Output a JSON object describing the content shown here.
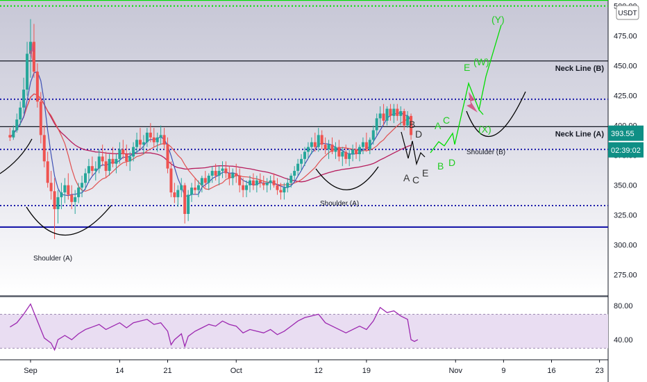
{
  "chart_data": {
    "type": "candlestick",
    "currency_badge": "USDT",
    "price_axis": {
      "ylim": [
        258,
        505
      ],
      "ticks": [
        "500.00",
        "475.00",
        "450.00",
        "425.00",
        "400.00",
        "375.00",
        "350.00",
        "325.00",
        "300.00",
        "275.00"
      ],
      "tick_values": [
        500,
        475,
        450,
        425,
        400,
        375,
        350,
        325,
        300,
        275
      ]
    },
    "rsi_axis": {
      "ylim": [
        18,
        90
      ],
      "ticks": [
        "80.00",
        "40.00"
      ],
      "tick_values": [
        80,
        40
      ],
      "band_upper": 70,
      "band_lower": 30
    },
    "x_axis": {
      "labels": [
        "Sep",
        "14",
        "21",
        "Oct",
        "12",
        "19",
        "Nov",
        "9",
        "16",
        "23"
      ],
      "day_index": [
        0,
        13,
        20,
        30,
        42,
        49,
        62,
        69,
        76,
        83
      ]
    },
    "current_price": "393.55",
    "countdown": "02:39:02",
    "horizontal_levels": [
      {
        "value": 505,
        "color": "#00e000",
        "style": "solid"
      },
      {
        "value": 500,
        "color": "#00e000",
        "style": "dotted"
      },
      {
        "value": 454,
        "color": "#131722",
        "style": "solid",
        "label": "Neck Line (B)"
      },
      {
        "value": 422,
        "color": "#1a1aaa",
        "style": "dotted"
      },
      {
        "value": 399,
        "color": "#131722",
        "style": "solid",
        "label": "Neck Line (A)"
      },
      {
        "value": 380,
        "color": "#1a1aaa",
        "style": "dotted"
      },
      {
        "value": 333,
        "color": "#1a1aaa",
        "style": "dotted"
      },
      {
        "value": 315,
        "color": "#1a1aaa",
        "style": "solid"
      }
    ],
    "annotations": {
      "shoulder_a_left": "Shoulder (A)",
      "shoulder_a_right": "Shoulder (A)",
      "shoulder_b": "Shoulder (B)",
      "wave_black": [
        "B",
        "D",
        "A",
        "C",
        "E"
      ],
      "wave_green": [
        "A",
        "C",
        "B",
        "D",
        "E",
        "(W)",
        "(X)",
        "(Y)"
      ]
    },
    "candles": [
      {
        "day": -3.0,
        "o": 392,
        "h": 398,
        "l": 387,
        "c": 390
      },
      {
        "day": -2.5,
        "o": 390,
        "h": 400,
        "l": 388,
        "c": 396
      },
      {
        "day": -2.0,
        "o": 396,
        "h": 410,
        "l": 394,
        "c": 405
      },
      {
        "day": -1.5,
        "o": 405,
        "h": 420,
        "l": 400,
        "c": 415
      },
      {
        "day": -1.0,
        "o": 415,
        "h": 440,
        "l": 410,
        "c": 430
      },
      {
        "day": -0.5,
        "o": 430,
        "h": 470,
        "l": 425,
        "c": 460
      },
      {
        "day": 0.0,
        "o": 460,
        "h": 489,
        "l": 440,
        "c": 470
      },
      {
        "day": 0.5,
        "o": 470,
        "h": 485,
        "l": 440,
        "c": 445
      },
      {
        "day": 1.0,
        "o": 445,
        "h": 452,
        "l": 415,
        "c": 420
      },
      {
        "day": 1.5,
        "o": 420,
        "h": 428,
        "l": 385,
        "c": 392
      },
      {
        "day": 2.0,
        "o": 392,
        "h": 400,
        "l": 365,
        "c": 370
      },
      {
        "day": 2.5,
        "o": 370,
        "h": 378,
        "l": 348,
        "c": 352
      },
      {
        "day": 3.0,
        "o": 352,
        "h": 362,
        "l": 338,
        "c": 345
      },
      {
        "day": 3.5,
        "o": 345,
        "h": 356,
        "l": 305,
        "c": 330
      },
      {
        "day": 4.0,
        "o": 330,
        "h": 346,
        "l": 318,
        "c": 340
      },
      {
        "day": 4.5,
        "o": 340,
        "h": 352,
        "l": 330,
        "c": 344
      },
      {
        "day": 5.0,
        "o": 344,
        "h": 356,
        "l": 335,
        "c": 350
      },
      {
        "day": 5.5,
        "o": 350,
        "h": 360,
        "l": 338,
        "c": 342
      },
      {
        "day": 6.0,
        "o": 342,
        "h": 350,
        "l": 330,
        "c": 336
      },
      {
        "day": 6.5,
        "o": 336,
        "h": 346,
        "l": 326,
        "c": 340
      },
      {
        "day": 7.0,
        "o": 340,
        "h": 352,
        "l": 335,
        "c": 348
      },
      {
        "day": 7.5,
        "o": 348,
        "h": 358,
        "l": 340,
        "c": 352
      },
      {
        "day": 8.0,
        "o": 352,
        "h": 364,
        "l": 346,
        "c": 360
      },
      {
        "day": 8.5,
        "o": 360,
        "h": 372,
        "l": 352,
        "c": 366
      },
      {
        "day": 9.0,
        "o": 366,
        "h": 374,
        "l": 358,
        "c": 362
      },
      {
        "day": 9.5,
        "o": 362,
        "h": 370,
        "l": 354,
        "c": 364
      },
      {
        "day": 10.0,
        "o": 364,
        "h": 380,
        "l": 360,
        "c": 374
      },
      {
        "day": 10.5,
        "o": 374,
        "h": 384,
        "l": 366,
        "c": 370
      },
      {
        "day": 11.0,
        "o": 370,
        "h": 378,
        "l": 356,
        "c": 362
      },
      {
        "day": 11.5,
        "o": 362,
        "h": 376,
        "l": 358,
        "c": 372
      },
      {
        "day": 12.0,
        "o": 372,
        "h": 382,
        "l": 365,
        "c": 368
      },
      {
        "day": 12.5,
        "o": 368,
        "h": 376,
        "l": 360,
        "c": 372
      },
      {
        "day": 13.0,
        "o": 372,
        "h": 386,
        "l": 368,
        "c": 380
      },
      {
        "day": 13.5,
        "o": 380,
        "h": 388,
        "l": 372,
        "c": 376
      },
      {
        "day": 14.0,
        "o": 376,
        "h": 384,
        "l": 366,
        "c": 370
      },
      {
        "day": 14.5,
        "o": 370,
        "h": 378,
        "l": 362,
        "c": 374
      },
      {
        "day": 15.0,
        "o": 374,
        "h": 386,
        "l": 370,
        "c": 382
      },
      {
        "day": 15.5,
        "o": 382,
        "h": 394,
        "l": 376,
        "c": 388
      },
      {
        "day": 16.0,
        "o": 388,
        "h": 398,
        "l": 380,
        "c": 384
      },
      {
        "day": 16.5,
        "o": 384,
        "h": 392,
        "l": 376,
        "c": 386
      },
      {
        "day": 17.0,
        "o": 386,
        "h": 398,
        "l": 382,
        "c": 394
      },
      {
        "day": 17.5,
        "o": 394,
        "h": 402,
        "l": 386,
        "c": 390
      },
      {
        "day": 18.0,
        "o": 390,
        "h": 398,
        "l": 382,
        "c": 386
      },
      {
        "day": 18.5,
        "o": 386,
        "h": 394,
        "l": 378,
        "c": 390
      },
      {
        "day": 19.0,
        "o": 390,
        "h": 400,
        "l": 384,
        "c": 392
      },
      {
        "day": 19.5,
        "o": 392,
        "h": 398,
        "l": 380,
        "c": 384
      },
      {
        "day": 20.0,
        "o": 384,
        "h": 390,
        "l": 360,
        "c": 364
      },
      {
        "day": 20.5,
        "o": 364,
        "h": 370,
        "l": 340,
        "c": 344
      },
      {
        "day": 21.0,
        "o": 344,
        "h": 352,
        "l": 335,
        "c": 340
      },
      {
        "day": 21.5,
        "o": 340,
        "h": 350,
        "l": 332,
        "c": 346
      },
      {
        "day": 22.0,
        "o": 346,
        "h": 356,
        "l": 340,
        "c": 350
      },
      {
        "day": 22.5,
        "o": 350,
        "h": 352,
        "l": 318,
        "c": 326
      },
      {
        "day": 23.0,
        "o": 326,
        "h": 346,
        "l": 320,
        "c": 342
      },
      {
        "day": 23.5,
        "o": 342,
        "h": 352,
        "l": 336,
        "c": 348
      },
      {
        "day": 24.0,
        "o": 348,
        "h": 356,
        "l": 342,
        "c": 346
      },
      {
        "day": 24.5,
        "o": 346,
        "h": 354,
        "l": 340,
        "c": 350
      },
      {
        "day": 25.0,
        "o": 350,
        "h": 358,
        "l": 344,
        "c": 356
      },
      {
        "day": 25.5,
        "o": 356,
        "h": 362,
        "l": 348,
        "c": 352
      },
      {
        "day": 26.0,
        "o": 352,
        "h": 360,
        "l": 346,
        "c": 358
      },
      {
        "day": 26.5,
        "o": 358,
        "h": 366,
        "l": 352,
        "c": 362
      },
      {
        "day": 27.0,
        "o": 362,
        "h": 368,
        "l": 354,
        "c": 358
      },
      {
        "day": 27.5,
        "o": 358,
        "h": 366,
        "l": 350,
        "c": 362
      },
      {
        "day": 28.0,
        "o": 362,
        "h": 370,
        "l": 356,
        "c": 364
      },
      {
        "day": 28.5,
        "o": 364,
        "h": 370,
        "l": 356,
        "c": 360
      },
      {
        "day": 29.0,
        "o": 360,
        "h": 366,
        "l": 350,
        "c": 356
      },
      {
        "day": 29.5,
        "o": 356,
        "h": 364,
        "l": 350,
        "c": 360
      },
      {
        "day": 30.0,
        "o": 360,
        "h": 368,
        "l": 352,
        "c": 358
      },
      {
        "day": 30.5,
        "o": 358,
        "h": 364,
        "l": 344,
        "c": 350
      },
      {
        "day": 31.0,
        "o": 350,
        "h": 356,
        "l": 340,
        "c": 346
      },
      {
        "day": 31.5,
        "o": 346,
        "h": 354,
        "l": 340,
        "c": 350
      },
      {
        "day": 32.0,
        "o": 350,
        "h": 358,
        "l": 344,
        "c": 354
      },
      {
        "day": 32.5,
        "o": 354,
        "h": 360,
        "l": 346,
        "c": 350
      },
      {
        "day": 33.0,
        "o": 350,
        "h": 358,
        "l": 344,
        "c": 354
      },
      {
        "day": 33.5,
        "o": 354,
        "h": 360,
        "l": 348,
        "c": 352
      },
      {
        "day": 34.0,
        "o": 352,
        "h": 358,
        "l": 346,
        "c": 350
      },
      {
        "day": 34.5,
        "o": 350,
        "h": 356,
        "l": 344,
        "c": 352
      },
      {
        "day": 35.0,
        "o": 352,
        "h": 358,
        "l": 346,
        "c": 354
      },
      {
        "day": 35.5,
        "o": 354,
        "h": 360,
        "l": 348,
        "c": 350
      },
      {
        "day": 36.0,
        "o": 350,
        "h": 356,
        "l": 342,
        "c": 346
      },
      {
        "day": 36.5,
        "o": 346,
        "h": 352,
        "l": 338,
        "c": 344
      },
      {
        "day": 37.0,
        "o": 344,
        "h": 352,
        "l": 338,
        "c": 348
      },
      {
        "day": 37.5,
        "o": 348,
        "h": 356,
        "l": 344,
        "c": 352
      },
      {
        "day": 38.0,
        "o": 352,
        "h": 360,
        "l": 348,
        "c": 358
      },
      {
        "day": 38.5,
        "o": 358,
        "h": 366,
        "l": 354,
        "c": 362
      },
      {
        "day": 39.0,
        "o": 362,
        "h": 372,
        "l": 358,
        "c": 368
      },
      {
        "day": 39.5,
        "o": 368,
        "h": 376,
        "l": 362,
        "c": 372
      },
      {
        "day": 40.0,
        "o": 372,
        "h": 382,
        "l": 366,
        "c": 378
      },
      {
        "day": 40.5,
        "o": 378,
        "h": 386,
        "l": 372,
        "c": 382
      },
      {
        "day": 41.0,
        "o": 382,
        "h": 390,
        "l": 376,
        "c": 386
      },
      {
        "day": 41.5,
        "o": 386,
        "h": 394,
        "l": 378,
        "c": 382
      },
      {
        "day": 42.0,
        "o": 382,
        "h": 398,
        "l": 378,
        "c": 392
      },
      {
        "day": 42.5,
        "o": 392,
        "h": 396,
        "l": 380,
        "c": 384
      },
      {
        "day": 43.0,
        "o": 384,
        "h": 390,
        "l": 376,
        "c": 380
      },
      {
        "day": 43.5,
        "o": 380,
        "h": 388,
        "l": 372,
        "c": 384
      },
      {
        "day": 44.0,
        "o": 384,
        "h": 390,
        "l": 376,
        "c": 378
      },
      {
        "day": 44.5,
        "o": 378,
        "h": 386,
        "l": 372,
        "c": 382
      },
      {
        "day": 45.0,
        "o": 382,
        "h": 388,
        "l": 370,
        "c": 374
      },
      {
        "day": 45.5,
        "o": 374,
        "h": 382,
        "l": 366,
        "c": 378
      },
      {
        "day": 46.0,
        "o": 378,
        "h": 384,
        "l": 368,
        "c": 372
      },
      {
        "day": 46.5,
        "o": 372,
        "h": 380,
        "l": 366,
        "c": 376
      },
      {
        "day": 47.0,
        "o": 376,
        "h": 384,
        "l": 370,
        "c": 380
      },
      {
        "day": 47.5,
        "o": 380,
        "h": 386,
        "l": 372,
        "c": 376
      },
      {
        "day": 48.0,
        "o": 376,
        "h": 384,
        "l": 370,
        "c": 382
      },
      {
        "day": 48.5,
        "o": 382,
        "h": 390,
        "l": 376,
        "c": 386
      },
      {
        "day": 49.0,
        "o": 386,
        "h": 394,
        "l": 378,
        "c": 380
      },
      {
        "day": 49.5,
        "o": 380,
        "h": 390,
        "l": 376,
        "c": 388
      },
      {
        "day": 50.0,
        "o": 388,
        "h": 400,
        "l": 384,
        "c": 396
      },
      {
        "day": 50.5,
        "o": 396,
        "h": 410,
        "l": 392,
        "c": 406
      },
      {
        "day": 51.0,
        "o": 406,
        "h": 416,
        "l": 400,
        "c": 410
      },
      {
        "day": 51.5,
        "o": 410,
        "h": 418,
        "l": 400,
        "c": 404
      },
      {
        "day": 52.0,
        "o": 404,
        "h": 416,
        "l": 400,
        "c": 414
      },
      {
        "day": 52.5,
        "o": 414,
        "h": 418,
        "l": 404,
        "c": 408
      },
      {
        "day": 53.0,
        "o": 408,
        "h": 418,
        "l": 402,
        "c": 414
      },
      {
        "day": 53.5,
        "o": 414,
        "h": 418,
        "l": 404,
        "c": 408
      },
      {
        "day": 54.0,
        "o": 408,
        "h": 416,
        "l": 400,
        "c": 412
      },
      {
        "day": 54.5,
        "o": 412,
        "h": 414,
        "l": 396,
        "c": 400
      },
      {
        "day": 55.0,
        "o": 400,
        "h": 412,
        "l": 398,
        "c": 408
      },
      {
        "day": 55.5,
        "o": 408,
        "h": 410,
        "l": 388,
        "c": 392
      }
    ],
    "rsi": [
      {
        "day": -3.0,
        "v": 55
      },
      {
        "day": -2.0,
        "v": 60
      },
      {
        "day": -1.0,
        "v": 70
      },
      {
        "day": 0.0,
        "v": 82
      },
      {
        "day": 1.0,
        "v": 62
      },
      {
        "day": 2.0,
        "v": 42
      },
      {
        "day": 3.0,
        "v": 36
      },
      {
        "day": 3.5,
        "v": 28
      },
      {
        "day": 4.0,
        "v": 40
      },
      {
        "day": 5.0,
        "v": 45
      },
      {
        "day": 6.0,
        "v": 40
      },
      {
        "day": 7.0,
        "v": 47
      },
      {
        "day": 8.0,
        "v": 52
      },
      {
        "day": 9.0,
        "v": 55
      },
      {
        "day": 10.0,
        "v": 58
      },
      {
        "day": 11.0,
        "v": 52
      },
      {
        "day": 12.0,
        "v": 56
      },
      {
        "day": 13.0,
        "v": 60
      },
      {
        "day": 14.0,
        "v": 54
      },
      {
        "day": 15.0,
        "v": 60
      },
      {
        "day": 16.0,
        "v": 62
      },
      {
        "day": 17.0,
        "v": 64
      },
      {
        "day": 18.0,
        "v": 58
      },
      {
        "day": 19.0,
        "v": 60
      },
      {
        "day": 20.0,
        "v": 50
      },
      {
        "day": 20.5,
        "v": 34
      },
      {
        "day": 21.0,
        "v": 40
      },
      {
        "day": 22.0,
        "v": 47
      },
      {
        "day": 22.5,
        "v": 32
      },
      {
        "day": 23.0,
        "v": 44
      },
      {
        "day": 24.0,
        "v": 50
      },
      {
        "day": 25.0,
        "v": 54
      },
      {
        "day": 26.0,
        "v": 58
      },
      {
        "day": 27.0,
        "v": 56
      },
      {
        "day": 28.0,
        "v": 62
      },
      {
        "day": 29.0,
        "v": 58
      },
      {
        "day": 30.0,
        "v": 56
      },
      {
        "day": 31.0,
        "v": 48
      },
      {
        "day": 32.0,
        "v": 52
      },
      {
        "day": 33.0,
        "v": 50
      },
      {
        "day": 34.0,
        "v": 48
      },
      {
        "day": 35.0,
        "v": 52
      },
      {
        "day": 36.0,
        "v": 46
      },
      {
        "day": 37.0,
        "v": 50
      },
      {
        "day": 38.0,
        "v": 56
      },
      {
        "day": 39.0,
        "v": 62
      },
      {
        "day": 40.0,
        "v": 66
      },
      {
        "day": 41.0,
        "v": 68
      },
      {
        "day": 42.0,
        "v": 70
      },
      {
        "day": 43.0,
        "v": 60
      },
      {
        "day": 44.0,
        "v": 56
      },
      {
        "day": 45.0,
        "v": 52
      },
      {
        "day": 46.0,
        "v": 48
      },
      {
        "day": 47.0,
        "v": 52
      },
      {
        "day": 48.0,
        "v": 56
      },
      {
        "day": 49.0,
        "v": 52
      },
      {
        "day": 50.0,
        "v": 62
      },
      {
        "day": 51.0,
        "v": 78
      },
      {
        "day": 52.0,
        "v": 72
      },
      {
        "day": 53.0,
        "v": 74
      },
      {
        "day": 54.0,
        "v": 68
      },
      {
        "day": 55.0,
        "v": 64
      },
      {
        "day": 55.5,
        "v": 40
      },
      {
        "day": 56.0,
        "v": 38
      },
      {
        "day": 56.5,
        "v": 40
      }
    ]
  }
}
